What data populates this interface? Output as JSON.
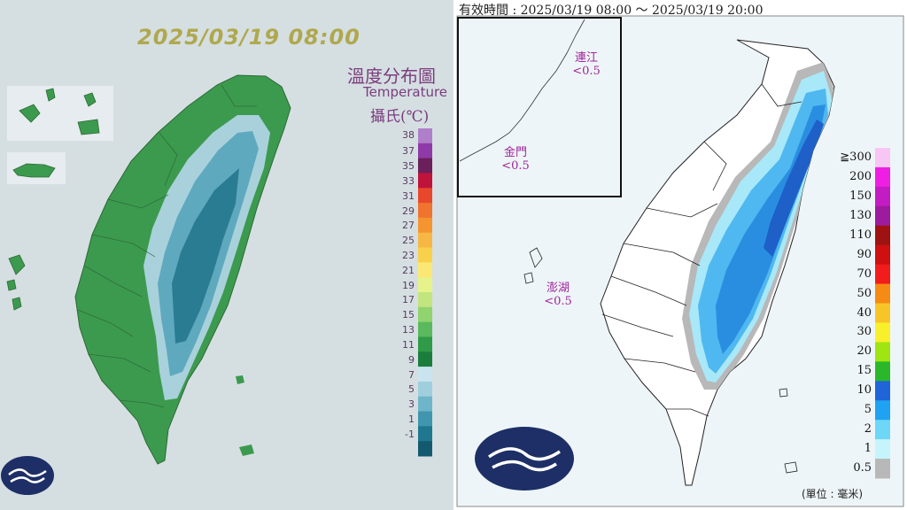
{
  "temperature_map": {
    "timestamp": "2025/03/19 08:00",
    "title": "溫度分布圖",
    "subtitle": "Temperature",
    "unit": "攝氏(℃)",
    "legend": {
      "ticks": [
        "38",
        "37",
        "35",
        "33",
        "31",
        "29",
        "27",
        "25",
        "23",
        "21",
        "19",
        "17",
        "15",
        "13",
        "11",
        "9",
        "7",
        "5",
        "3",
        "1",
        "-1"
      ],
      "colors": [
        "#b07fc9",
        "#8f3aa8",
        "#6b1f5b",
        "#c0133a",
        "#e8472c",
        "#f0732e",
        "#f4952f",
        "#f7b744",
        "#f9d04a",
        "#fbe773",
        "#e6f28a",
        "#c2e57f",
        "#90d36f",
        "#5ab95c",
        "#2f9a47",
        "#1b7d3c",
        "#c9e4ee",
        "#9fcfdd",
        "#6fb5c9",
        "#3f96ae",
        "#1f7790",
        "#145a6f"
      ]
    }
  },
  "rainfall_map": {
    "valid_time": "有效時間 : 2025/03/19 08:00 ～ 2025/03/19 20:00",
    "islands": {
      "matsu": {
        "name": "連江",
        "value": "<0.5"
      },
      "kinmen": {
        "name": "金門",
        "value": "<0.5"
      },
      "penghu": {
        "name": "澎湖",
        "value": "<0.5"
      }
    },
    "legend": {
      "ticks": [
        "≧300",
        "200",
        "150",
        "130",
        "110",
        "90",
        "70",
        "50",
        "40",
        "30",
        "20",
        "15",
        "10",
        "5",
        "2",
        "1",
        "0.5"
      ],
      "colors": [
        "#f8c6f4",
        "#ee1ee2",
        "#c21cc2",
        "#9e1a9e",
        "#9e1212",
        "#ce1010",
        "#f21c1c",
        "#f58b14",
        "#f8c528",
        "#f8f02a",
        "#9ee512",
        "#2ab82a",
        "#1f64d8",
        "#1fa2f2",
        "#6ed6f6",
        "#c6f4fb",
        "#b8b8b8"
      ]
    },
    "unit": "(單位 : 毫米)"
  }
}
